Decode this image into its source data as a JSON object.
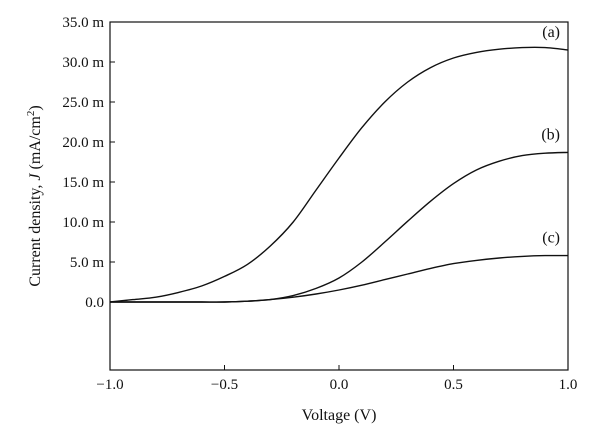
{
  "chart_data": {
    "type": "line",
    "title": "",
    "xlabel": "Voltage (V)",
    "ylabel": "Current density, J (mA/cm2)",
    "ylabel_parts": {
      "prefix": "Current density, ",
      "var": "J",
      "unit_open": " (mA/cm",
      "unit_sup": "2",
      "unit_close": ")"
    },
    "xlim": [
      -1.0,
      1.0
    ],
    "ylim": [
      -0.0085,
      0.035
    ],
    "x_ticks": [
      {
        "value": -1.0,
        "label": "−1.0"
      },
      {
        "value": -0.5,
        "label": "−0.5"
      },
      {
        "value": 0.0,
        "label": "0.0"
      },
      {
        "value": 0.5,
        "label": "0.5"
      },
      {
        "value": 1.0,
        "label": "1.0"
      }
    ],
    "y_ticks": [
      {
        "value": 0.0,
        "label": "0.0"
      },
      {
        "value": 0.005,
        "label": "5.0 m"
      },
      {
        "value": 0.01,
        "label": "10.0 m"
      },
      {
        "value": 0.015,
        "label": "15.0 m"
      },
      {
        "value": 0.02,
        "label": "20.0 m"
      },
      {
        "value": 0.025,
        "label": "25.0 m"
      },
      {
        "value": 0.03,
        "label": "30.0 m"
      },
      {
        "value": 0.035,
        "label": "35.0 m"
      }
    ],
    "grid": false,
    "legend": "none",
    "series": [
      {
        "label": "(a)",
        "x": [
          -1.0,
          -0.9,
          -0.8,
          -0.7,
          -0.6,
          -0.5,
          -0.4,
          -0.3,
          -0.2,
          -0.1,
          0.0,
          0.1,
          0.2,
          0.3,
          0.4,
          0.5,
          0.6,
          0.7,
          0.8,
          0.9,
          1.0
        ],
        "y": [
          0.0,
          0.0003,
          0.0006,
          0.0012,
          0.002,
          0.0032,
          0.0047,
          0.007,
          0.01,
          0.014,
          0.018,
          0.0218,
          0.025,
          0.0275,
          0.0293,
          0.0305,
          0.0312,
          0.0316,
          0.0318,
          0.0318,
          0.0315
        ]
      },
      {
        "label": "(b)",
        "x": [
          -1.0,
          -0.9,
          -0.8,
          -0.7,
          -0.6,
          -0.5,
          -0.4,
          -0.3,
          -0.2,
          -0.1,
          0.0,
          0.1,
          0.2,
          0.3,
          0.4,
          0.5,
          0.6,
          0.7,
          0.8,
          0.9,
          1.0
        ],
        "y": [
          0.0,
          0.0,
          0.0,
          0.0,
          0.0,
          0.0,
          0.0001,
          0.0003,
          0.0008,
          0.0017,
          0.003,
          0.005,
          0.0075,
          0.0101,
          0.0126,
          0.0148,
          0.0165,
          0.0176,
          0.0183,
          0.0186,
          0.0187
        ]
      },
      {
        "label": "(c)",
        "x": [
          -1.0,
          -0.9,
          -0.8,
          -0.7,
          -0.6,
          -0.5,
          -0.4,
          -0.3,
          -0.2,
          -0.1,
          0.0,
          0.1,
          0.2,
          0.3,
          0.4,
          0.5,
          0.6,
          0.7,
          0.8,
          0.9,
          1.0
        ],
        "y": [
          0.0,
          0.0,
          0.0,
          0.0,
          0.0,
          0.0,
          0.0001,
          0.0003,
          0.0006,
          0.001,
          0.0015,
          0.0021,
          0.0028,
          0.0035,
          0.0042,
          0.0048,
          0.0052,
          0.0055,
          0.0057,
          0.0058,
          0.0058
        ]
      }
    ]
  }
}
